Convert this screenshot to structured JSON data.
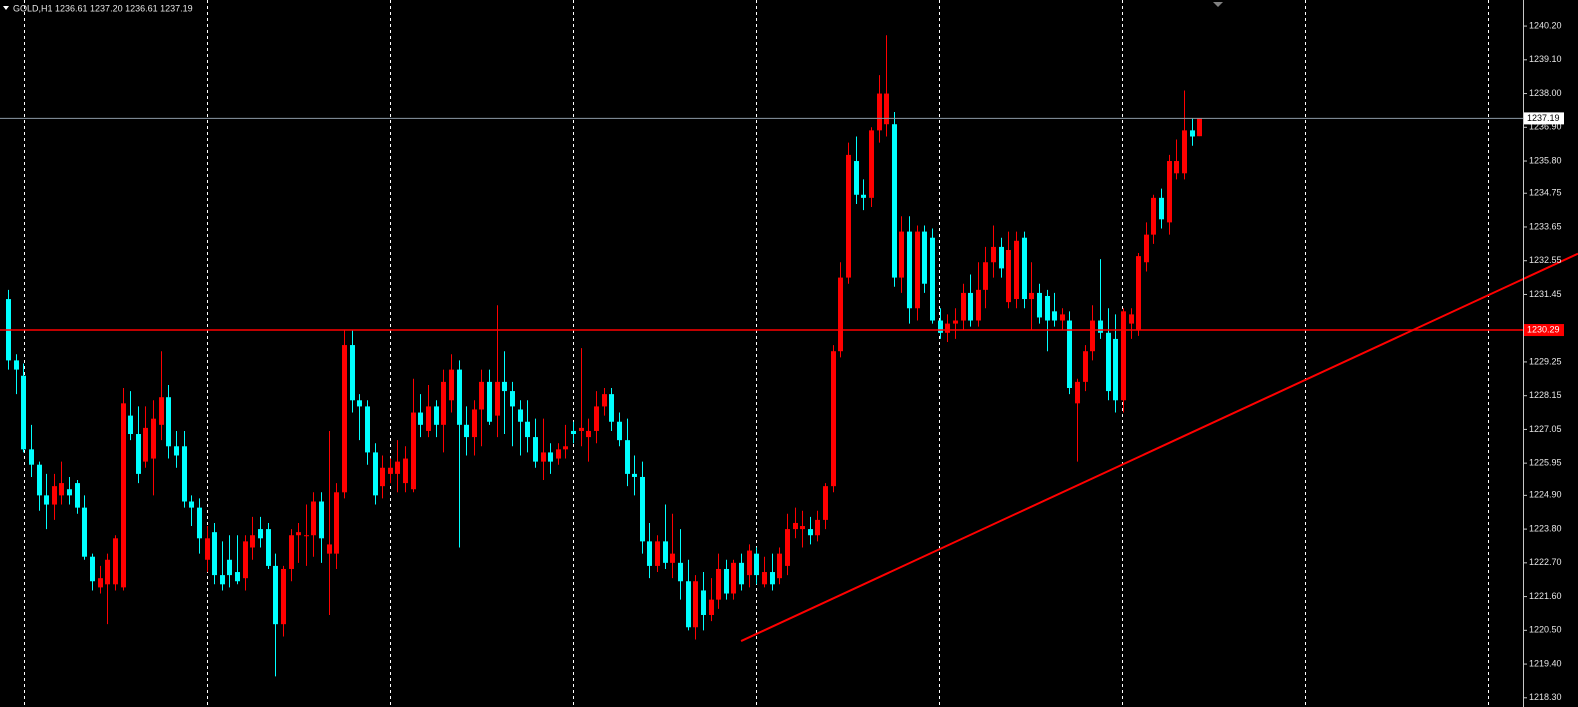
{
  "chart_data": {
    "type": "candlestick",
    "title": "GOLD,H1 1236.61 1237.20 1236.61 1237.19",
    "bull_color": "#ff0000",
    "bear_color": "#00ffff",
    "xlim": [
      -1.05,
      198.4
    ],
    "ylim": [
      1218.0,
      1241.05
    ],
    "yticks": [
      {
        "value": 1240.2,
        "label": "1240.20"
      },
      {
        "value": 1239.1,
        "label": "1239.10"
      },
      {
        "value": 1238,
        "label": "1238.00"
      },
      {
        "value": 1236.9,
        "label": "1236.90"
      },
      {
        "value": 1235.8,
        "label": "1235.80"
      },
      1234.75,
      1233.65,
      1232.55,
      1231.45,
      1229.25,
      1228.15,
      1227.05,
      1225.95,
      {
        "value": 1224.9,
        "label": "1224.90"
      },
      {
        "value": 1223.8,
        "label": "1223.80"
      },
      {
        "value": 1222.7,
        "label": "1222.70"
      },
      {
        "value": 1221.6,
        "label": "1221.60"
      },
      {
        "value": 1220.5,
        "label": "1220.50"
      },
      {
        "value": 1219.4,
        "label": "1219.40"
      },
      {
        "value": 1218.3,
        "label": "1218.30"
      }
    ],
    "open": [
      1231.3,
      1229.3,
      1228.8,
      1226.4,
      1225.9,
      1224.9,
      1224.6,
      1224.9,
      1225.1,
      1225.3,
      1224.5,
      1222.9,
      1221.9,
      1222.0,
      1222.0,
      1221.9,
      1227.5,
      1226.9,
      1226.0,
      1226.1,
      1227.2,
      1228.1,
      1226.5,
      1226.5,
      1224.7,
      1224.5,
      1222.8,
      1223.7,
      1222.3,
      1222.8,
      1222.4,
      1222.2,
      1223.2,
      1223.8,
      1223.8,
      1222.6,
      1220.7,
      1222.5,
      1223.6,
      1223.6,
      1223.6,
      1224.7,
      1223.0,
      1223.0,
      1225.0,
      1229.8,
      1228.0,
      1227.8,
      1226.3,
      1225.2,
      1225.6,
      1225.6,
      1225.3,
      1225.1,
      1227.6,
      1227.0,
      1227.8,
      1227.2,
      1228.0,
      1229.0,
      1227.2,
      1226.8,
      1227.7,
      1228.6,
      1227.5,
      1228.6,
      1228.3,
      1227.7,
      1227.3,
      1226.8,
      1226.0,
      1226.3,
      1226.1,
      1226.4,
      1227.0,
      1227.0,
      1226.8,
      1227.0,
      1227.8,
      1228.2,
      1227.3,
      1226.7,
      1225.6,
      1225.5,
      1223.4,
      1222.6,
      1223.4,
      1222.7,
      1222.7,
      1222.1,
      1220.6,
      1221.8,
      1221.0,
      1221.5,
      1222.5,
      1221.7,
      1222.7,
      1222.3,
      1223.0,
      1222.0,
      1222.4,
      1222.2,
      1222.6,
      1223.8,
      1223.8,
      1223.8,
      1223.6,
      1224.1,
      1225.2,
      1229.6,
      1232.0,
      1235.8,
      1234.7,
      1234.6,
      1236.8,
      1237.0,
      1237.0,
      1232.0,
      1233.5,
      1231.0,
      1233.5,
      1233.3,
      1230.6,
      1230.2,
      1230.5,
      1230.6,
      1231.5,
      1230.6,
      1231.6,
      1232.5,
      1233.0,
      1231.2,
      1231.3,
      1233.3,
      1231.3,
      1231.5,
      1231.4,
      1230.9,
      1230.6,
      1230.6,
      1227.9,
      1228.6,
      1229.6,
      1230.6,
      1230.2,
      1230.0,
      1228.0,
      1230.5,
      1230.3,
      1232.5,
      1233.4,
      1234.6,
      1233.8,
      1235.4,
      1235.4,
      1236.8,
      1236.61
    ],
    "high": [
      1231.6,
      1229.5,
      1229.2,
      1227.2,
      1226.0,
      1225.6,
      1225.6,
      1226.0,
      1225.5,
      1225.4,
      1224.9,
      1223.0,
      1222.6,
      1223.0,
      1223.6,
      1228.4,
      1228.3,
      1227.8,
      1227.8,
      1228.0,
      1229.6,
      1228.5,
      1227.0,
      1227.0,
      1224.9,
      1224.8,
      1223.9,
      1224.0,
      1223.4,
      1223.6,
      1223.6,
      1223.6,
      1224.2,
      1224.2,
      1224.0,
      1223.0,
      1222.6,
      1223.8,
      1224.0,
      1224.6,
      1225.0,
      1225.0,
      1227.0,
      1225.3,
      1230.3,
      1230.3,
      1228.2,
      1228.0,
      1226.6,
      1226.2,
      1226.1,
      1226.7,
      1226.5,
      1228.7,
      1228.2,
      1228.5,
      1228.0,
      1229.0,
      1229.5,
      1229.3,
      1227.8,
      1228.0,
      1229.0,
      1229.0,
      1231.1,
      1229.6,
      1228.6,
      1228.0,
      1228.0,
      1227.4,
      1227.4,
      1226.6,
      1226.6,
      1227.2,
      1227.3,
      1229.7,
      1227.4,
      1228.3,
      1228.4,
      1228.4,
      1227.6,
      1227.4,
      1226.2,
      1226.0,
      1224.0,
      1223.6,
      1224.6,
      1224.3,
      1223.8,
      1222.8,
      1222.3,
      1222.4,
      1222.2,
      1223.0,
      1222.8,
      1222.8,
      1223.0,
      1223.3,
      1223.2,
      1222.9,
      1223.0,
      1223.2,
      1224.3,
      1224.5,
      1224.4,
      1224.2,
      1224.4,
      1225.3,
      1229.8,
      1232.5,
      1236.4,
      1236.6,
      1235.2,
      1236.9,
      1238.6,
      1239.9,
      1237.4,
      1234.0,
      1234.0,
      1233.7,
      1233.7,
      1233.6,
      1231.0,
      1230.8,
      1231.0,
      1231.8,
      1232.1,
      1232.5,
      1233.0,
      1233.7,
      1233.3,
      1233.5,
      1233.5,
      1233.5,
      1232.5,
      1231.8,
      1231.6,
      1231.5,
      1231.0,
      1230.9,
      1228.7,
      1229.8,
      1231.1,
      1232.6,
      1231.0,
      1230.8,
      1231.0,
      1231.0,
      1232.8,
      1233.8,
      1234.7,
      1234.9,
      1236.0,
      1236.5,
      1238.1,
      1237.2,
      1237.2
    ],
    "low": [
      1229.0,
      1228.2,
      1226.3,
      1225.5,
      1224.4,
      1223.8,
      1224.1,
      1224.6,
      1224.6,
      1224.3,
      1222.8,
      1221.8,
      1221.7,
      1220.7,
      1221.8,
      1221.8,
      1226.7,
      1225.3,
      1225.8,
      1224.9,
      1226.7,
      1226.1,
      1225.8,
      1224.5,
      1223.9,
      1223.0,
      1222.4,
      1222.0,
      1221.8,
      1221.9,
      1222.0,
      1221.8,
      1222.8,
      1223.2,
      1222.5,
      1219.0,
      1220.3,
      1222.1,
      1222.7,
      1222.6,
      1222.9,
      1222.7,
      1221.0,
      1222.5,
      1224.8,
      1227.6,
      1226.7,
      1225.9,
      1224.6,
      1224.8,
      1225.3,
      1225.0,
      1225.0,
      1225.0,
      1226.8,
      1226.8,
      1226.8,
      1226.3,
      1227.6,
      1223.2,
      1226.2,
      1226.2,
      1226.5,
      1227.2,
      1226.8,
      1226.9,
      1226.5,
      1226.2,
      1226.3,
      1225.8,
      1225.4,
      1225.6,
      1225.9,
      1226.1,
      1226.6,
      1226.5,
      1226.0,
      1226.6,
      1227.5,
      1227.0,
      1226.5,
      1225.2,
      1224.9,
      1223.0,
      1222.2,
      1222.4,
      1222.5,
      1222.2,
      1221.5,
      1220.5,
      1220.2,
      1220.5,
      1220.8,
      1221.2,
      1221.5,
      1221.5,
      1221.8,
      1221.9,
      1222.0,
      1221.9,
      1221.8,
      1222.0,
      1222.3,
      1223.5,
      1223.2,
      1223.3,
      1223.4,
      1223.8,
      1225.0,
      1229.4,
      1231.8,
      1234.4,
      1234.2,
      1234.3,
      1236.4,
      1236.6,
      1231.7,
      1231.5,
      1230.5,
      1230.6,
      1231.5,
      1230.5,
      1230.0,
      1229.9,
      1230.0,
      1230.3,
      1230.4,
      1230.4,
      1231.0,
      1232.0,
      1232.0,
      1231.0,
      1231.0,
      1231.0,
      1230.3,
      1230.5,
      1229.6,
      1230.4,
      1230.3,
      1228.2,
      1226.0,
      1228.3,
      1229.3,
      1230.0,
      1228.0,
      1227.6,
      1227.6,
      1230.0,
      1230.1,
      1232.2,
      1233.1,
      1233.6,
      1233.4,
      1235.2,
      1235.2,
      1236.3,
      1236.61
    ],
    "close": [
      1229.3,
      1229.0,
      1226.4,
      1225.9,
      1224.9,
      1224.6,
      1225.2,
      1225.3,
      1224.9,
      1224.5,
      1222.9,
      1222.1,
      1222.2,
      1222.8,
      1223.5,
      1227.9,
      1226.9,
      1225.6,
      1227.1,
      1227.4,
      1228.1,
      1226.5,
      1226.2,
      1224.7,
      1224.5,
      1223.5,
      1223.5,
      1222.3,
      1222.0,
      1222.3,
      1222.1,
      1223.4,
      1223.6,
      1223.5,
      1222.6,
      1220.7,
      1222.5,
      1223.6,
      1223.7,
      1223.6,
      1224.7,
      1223.5,
      1223.3,
      1225.0,
      1229.8,
      1228.0,
      1227.8,
      1226.3,
      1224.9,
      1225.8,
      1225.8,
      1226.0,
      1226.1,
      1227.6,
      1227.2,
      1227.8,
      1227.2,
      1228.6,
      1229.0,
      1227.2,
      1226.8,
      1227.7,
      1228.6,
      1227.3,
      1228.6,
      1228.3,
      1227.8,
      1227.3,
      1226.8,
      1226.0,
      1226.3,
      1226.0,
      1226.4,
      1226.5,
      1226.9,
      1227.1,
      1227.0,
      1227.8,
      1228.2,
      1227.3,
      1226.7,
      1225.6,
      1225.5,
      1223.4,
      1222.6,
      1223.4,
      1222.7,
      1223.0,
      1222.1,
      1220.6,
      1222.1,
      1221.0,
      1221.5,
      1222.5,
      1221.7,
      1222.7,
      1222.0,
      1223.1,
      1222.3,
      1222.4,
      1222.0,
      1223.0,
      1223.8,
      1224.0,
      1223.9,
      1223.6,
      1224.1,
      1225.2,
      1229.6,
      1232.0,
      1236.0,
      1234.7,
      1234.6,
      1236.8,
      1238.0,
      1238.0,
      1232.0,
      1233.5,
      1231.0,
      1233.5,
      1231.8,
      1230.6,
      1230.2,
      1230.5,
      1230.6,
      1231.5,
      1230.6,
      1231.6,
      1232.5,
      1233.0,
      1232.3,
      1232.9,
      1233.2,
      1231.3,
      1231.5,
      1230.7,
      1230.6,
      1230.6,
      1230.8,
      1228.4,
      1228.6,
      1229.6,
      1230.6,
      1230.2,
      1228.3,
      1228.0,
      1230.9,
      1230.8,
      1232.7,
      1233.4,
      1234.6,
      1233.9,
      1235.8,
      1235.8,
      1236.8,
      1236.6,
      1237.19
    ],
    "bid": 1237.19,
    "bid_color": "#8c9aa6",
    "hline": {
      "value": 1230.29,
      "color": "#ff0000"
    },
    "trendline": {
      "x": [
        96,
        205.6
      ],
      "y": [
        1220.15,
        1232.78
      ],
      "color": "#ff0000"
    }
  }
}
